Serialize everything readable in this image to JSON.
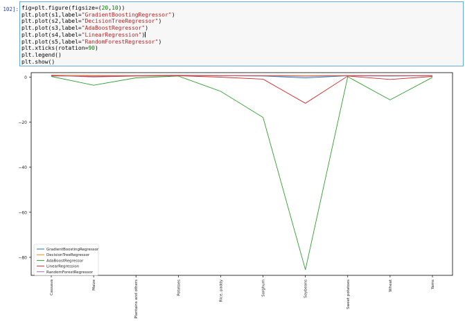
{
  "cell": {
    "prompt": "102]:",
    "lines": [
      {
        "segments": [
          {
            "t": "fig=plt.figure(figsize=(",
            "c": "n"
          },
          {
            "t": "20",
            "c": "num"
          },
          {
            "t": ",",
            "c": "n"
          },
          {
            "t": "10",
            "c": "num"
          },
          {
            "t": "))",
            "c": "n"
          }
        ]
      },
      {
        "segments": [
          {
            "t": "plt.plot(s1,label=",
            "c": "n"
          },
          {
            "t": "\"GradientBoostingRegressor\"",
            "c": "str"
          },
          {
            "t": ")",
            "c": "n"
          }
        ]
      },
      {
        "segments": [
          {
            "t": "plt.plot(s2,label=",
            "c": "n"
          },
          {
            "t": "\"DecisionTreeRegressor\"",
            "c": "str"
          },
          {
            "t": ")",
            "c": "n"
          }
        ]
      },
      {
        "segments": [
          {
            "t": "plt.plot(s3,label=",
            "c": "n"
          },
          {
            "t": "\"AdaBoostRegressor\"",
            "c": "str"
          },
          {
            "t": ")",
            "c": "n"
          }
        ]
      },
      {
        "segments": [
          {
            "t": "plt.plot(s4,label=",
            "c": "n"
          },
          {
            "t": "\"LinearRegression\"",
            "c": "str"
          },
          {
            "t": ")",
            "c": "n"
          }
        ]
      },
      {
        "segments": [
          {
            "t": "plt.plot(s5,label=",
            "c": "n"
          },
          {
            "t": "\"RandomForestRegressor\"",
            "c": "str"
          },
          {
            "t": ")",
            "c": "n"
          }
        ]
      },
      {
        "segments": [
          {
            "t": "plt.xticks(rotation=",
            "c": "n"
          },
          {
            "t": "90",
            "c": "num"
          },
          {
            "t": ")",
            "c": "n"
          }
        ]
      },
      {
        "segments": [
          {
            "t": "plt.legend()",
            "c": "n"
          }
        ]
      },
      {
        "segments": [
          {
            "t": "plt.show()",
            "c": "n"
          }
        ]
      }
    ]
  },
  "chart_data": {
    "type": "line",
    "categories": [
      "Cassava",
      "Maize",
      "Plantains and others",
      "Potatoes",
      "Rice, paddy",
      "Sorghum",
      "Soybeans",
      "Sweet potatoes",
      "Wheat",
      "Yams"
    ],
    "ylim": [
      -88,
      2
    ],
    "yticks": [
      0,
      -20,
      -40,
      -60,
      -80
    ],
    "ytick_labels": [
      "0",
      "−20",
      "−40",
      "−60",
      "−80"
    ],
    "legend_position": "lower-left",
    "series": [
      {
        "name": "GradientBoostingRegressor",
        "color": "#1f77b4",
        "values": [
          0.6,
          0.4,
          0.6,
          0.7,
          0.6,
          0.5,
          -0.3,
          0.6,
          0.5,
          0.6
        ]
      },
      {
        "name": "DecisionTreeRegressor",
        "color": "#ff7f0e",
        "values": [
          0.9,
          0.8,
          0.8,
          0.9,
          0.8,
          0.8,
          0.7,
          0.8,
          0.8,
          0.8
        ]
      },
      {
        "name": "AdaBoostRegressor",
        "color": "#2ca02c",
        "values": [
          0.3,
          -3.6,
          -0.3,
          0.5,
          -6.3,
          -17.9,
          -85.5,
          0.2,
          -10.1,
          -0.1
        ]
      },
      {
        "name": "LinearRegression",
        "color": "#d62728",
        "values": [
          0.7,
          0.1,
          0.5,
          0.6,
          0.0,
          -0.9,
          -11.6,
          0.5,
          -1.0,
          0.3
        ]
      },
      {
        "name": "RandomForestRegressor",
        "color": "#9467bd",
        "values": [
          0.5,
          0.5,
          0.6,
          0.7,
          0.6,
          0.6,
          0.4,
          0.6,
          0.6,
          0.6
        ]
      }
    ]
  }
}
